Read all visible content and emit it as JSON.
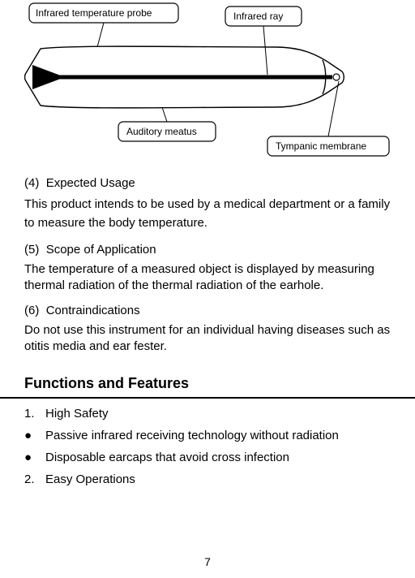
{
  "diagram": {
    "labels": {
      "probe": "Infrared temperature probe",
      "ray": "Infrared ray",
      "meatus": "Auditory meatus",
      "membrane": "Tympanic membrane"
    }
  },
  "sections": [
    {
      "num": "(4)",
      "title": "Expected Usage",
      "body": "This product intends to be used by a medical department or a family to measure the body temperature.",
      "tight": false
    },
    {
      "num": "(5)",
      "title": "Scope of Application",
      "body": "The temperature of a measured object is displayed by measuring thermal radiation of the thermal radiation of the earhole.",
      "tight": true
    },
    {
      "num": "(6)",
      "title": "Contraindications",
      "body": "Do not use this instrument for an individual having diseases such as otitis media and ear fester.",
      "tight": true
    }
  ],
  "heading": "Functions and Features",
  "list": [
    {
      "marker": "1.",
      "text": "High Safety"
    },
    {
      "marker": "●",
      "text": "Passive infrared receiving technology without radiation"
    },
    {
      "marker": "●",
      "text": "Disposable earcaps that avoid cross infection"
    },
    {
      "marker": "2.",
      "text": "Easy Operations"
    }
  ],
  "page_number": "7"
}
